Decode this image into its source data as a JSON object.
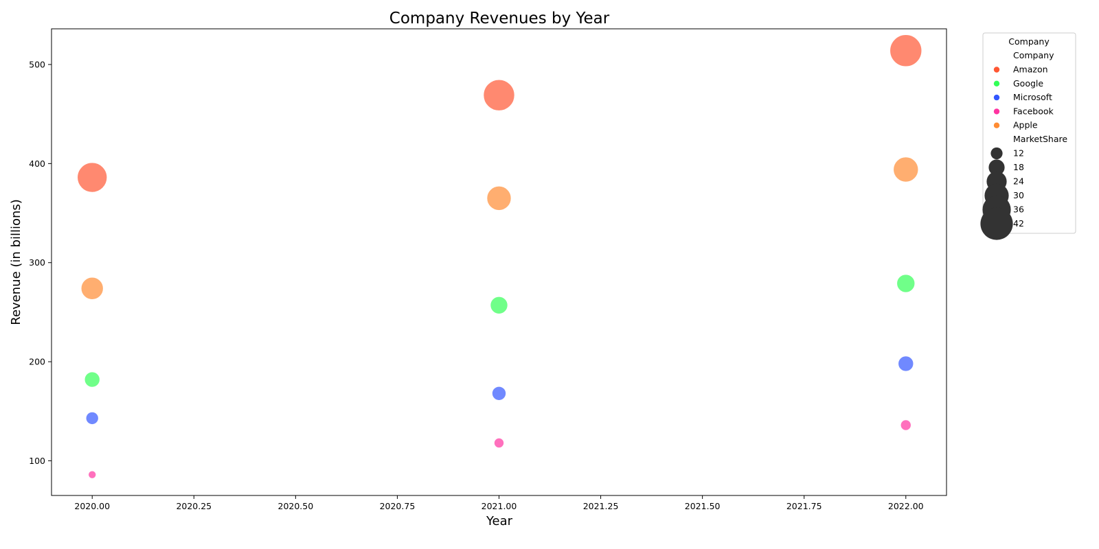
{
  "chart_data": {
    "type": "scatter",
    "title": "Company Revenues by Year",
    "xlabel": "Year",
    "ylabel": "Revenue (in billions)",
    "xlim": [
      2019.9,
      2022.1
    ],
    "ylim": [
      65,
      536
    ],
    "xticks": [
      2020.0,
      2020.25,
      2020.5,
      2020.75,
      2021.0,
      2021.25,
      2021.5,
      2021.75,
      2022.0
    ],
    "xtick_labels": [
      "2020.00",
      "2020.25",
      "2020.50",
      "2020.75",
      "2021.00",
      "2021.25",
      "2021.50",
      "2021.75",
      "2022.00"
    ],
    "yticks": [
      100,
      200,
      300,
      400,
      500
    ],
    "ytick_labels": [
      "100",
      "200",
      "300",
      "400",
      "500"
    ],
    "grid": false,
    "size_variable": "MarketShare",
    "series": [
      {
        "name": "Amazon",
        "color": "#ff5733",
        "points": [
          {
            "x": 2020,
            "y": 386,
            "size": 38
          },
          {
            "x": 2021,
            "y": 469,
            "size": 40
          },
          {
            "x": 2022,
            "y": 514,
            "size": 41
          }
        ]
      },
      {
        "name": "Google",
        "color": "#33ff57",
        "points": [
          {
            "x": 2020,
            "y": 182,
            "size": 17
          },
          {
            "x": 2021,
            "y": 257,
            "size": 20
          },
          {
            "x": 2022,
            "y": 279,
            "size": 21
          }
        ]
      },
      {
        "name": "Microsoft",
        "color": "#3357ff",
        "points": [
          {
            "x": 2020,
            "y": 143,
            "size": 13
          },
          {
            "x": 2021,
            "y": 168,
            "size": 15
          },
          {
            "x": 2022,
            "y": 198,
            "size": 17
          }
        ]
      },
      {
        "name": "Facebook",
        "color": "#ff33a1",
        "points": [
          {
            "x": 2020,
            "y": 86,
            "size": 6
          },
          {
            "x": 2021,
            "y": 118,
            "size": 9
          },
          {
            "x": 2022,
            "y": 136,
            "size": 10
          }
        ]
      },
      {
        "name": "Apple",
        "color": "#ff8c33",
        "points": [
          {
            "x": 2020,
            "y": 274,
            "size": 27
          },
          {
            "x": 2021,
            "y": 365,
            "size": 30
          },
          {
            "x": 2022,
            "y": 394,
            "size": 31
          }
        ]
      }
    ],
    "legend": {
      "placement": "upper-right-outside",
      "title": "Company",
      "hue_title": "Company",
      "size_title": "MarketShare",
      "size_entries": [
        {
          "label": "12",
          "size": 12
        },
        {
          "label": "18",
          "size": 18
        },
        {
          "label": "24",
          "size": 24
        },
        {
          "label": "30",
          "size": 30
        },
        {
          "label": "36",
          "size": 36
        },
        {
          "label": "42",
          "size": 42
        }
      ],
      "size_marker_color": "#333333"
    }
  }
}
